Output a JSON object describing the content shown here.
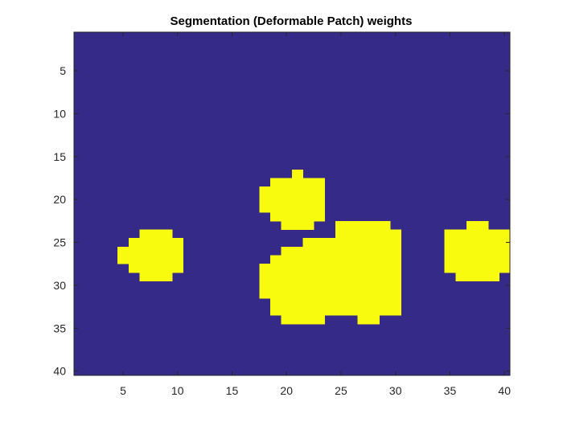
{
  "chart_data": {
    "type": "heatmap",
    "title": "Segmentation (Deformable Patch) weights",
    "xlabel": "",
    "ylabel": "",
    "rows": 40,
    "cols": 40,
    "xlim": [
      0.5,
      40.5
    ],
    "ylim": [
      0.5,
      40.5
    ],
    "y_direction": "reverse",
    "x_ticks": [
      5,
      10,
      15,
      20,
      25,
      30,
      35,
      40
    ],
    "y_ticks": [
      5,
      10,
      15,
      20,
      25,
      30,
      35,
      40
    ],
    "grid": false,
    "colors": {
      "background": "#352A87",
      "foreground": "#F9FB0E",
      "axis": "#262626"
    },
    "value_range": [
      0,
      1
    ],
    "regions_value_1": [
      {
        "row": 17,
        "col_start": 21,
        "col_end": 21
      },
      {
        "row": 18,
        "col_start": 19,
        "col_end": 23
      },
      {
        "row": 19,
        "col_start": 18,
        "col_end": 23
      },
      {
        "row": 20,
        "col_start": 18,
        "col_end": 23
      },
      {
        "row": 21,
        "col_start": 18,
        "col_end": 23
      },
      {
        "row": 22,
        "col_start": 19,
        "col_end": 23
      },
      {
        "row": 23,
        "col_start": 20,
        "col_end": 22
      },
      {
        "row": 23,
        "col_start": 25,
        "col_end": 29
      },
      {
        "row": 23,
        "col_start": 37,
        "col_end": 38
      },
      {
        "row": 24,
        "col_start": 7,
        "col_end": 9
      },
      {
        "row": 24,
        "col_start": 25,
        "col_end": 30
      },
      {
        "row": 24,
        "col_start": 35,
        "col_end": 40
      },
      {
        "row": 25,
        "col_start": 6,
        "col_end": 10
      },
      {
        "row": 25,
        "col_start": 22,
        "col_end": 30
      },
      {
        "row": 25,
        "col_start": 35,
        "col_end": 40
      },
      {
        "row": 26,
        "col_start": 5,
        "col_end": 10
      },
      {
        "row": 26,
        "col_start": 20,
        "col_end": 30
      },
      {
        "row": 26,
        "col_start": 35,
        "col_end": 40
      },
      {
        "row": 27,
        "col_start": 5,
        "col_end": 10
      },
      {
        "row": 27,
        "col_start": 19,
        "col_end": 30
      },
      {
        "row": 27,
        "col_start": 35,
        "col_end": 40
      },
      {
        "row": 28,
        "col_start": 6,
        "col_end": 10
      },
      {
        "row": 28,
        "col_start": 18,
        "col_end": 30
      },
      {
        "row": 28,
        "col_start": 35,
        "col_end": 40
      },
      {
        "row": 29,
        "col_start": 7,
        "col_end": 9
      },
      {
        "row": 29,
        "col_start": 18,
        "col_end": 30
      },
      {
        "row": 29,
        "col_start": 36,
        "col_end": 39
      },
      {
        "row": 30,
        "col_start": 18,
        "col_end": 30
      },
      {
        "row": 31,
        "col_start": 18,
        "col_end": 30
      },
      {
        "row": 32,
        "col_start": 19,
        "col_end": 30
      },
      {
        "row": 33,
        "col_start": 19,
        "col_end": 30
      },
      {
        "row": 34,
        "col_start": 20,
        "col_end": 23
      },
      {
        "row": 34,
        "col_start": 27,
        "col_end": 28
      }
    ]
  }
}
